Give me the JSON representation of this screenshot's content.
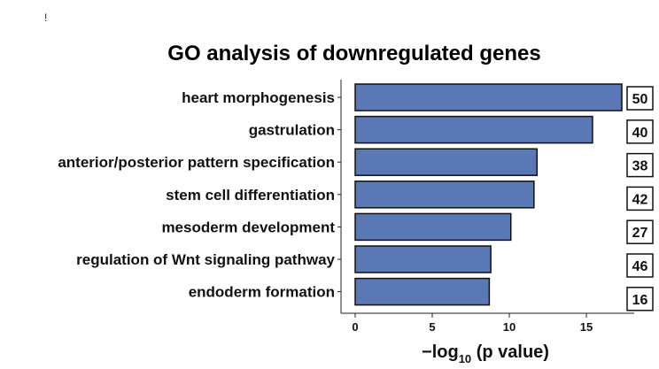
{
  "chart_data": {
    "type": "bar",
    "orientation": "horizontal",
    "title": "GO analysis of downregulated genes",
    "categories": [
      "heart morphogenesis",
      "gastrulation",
      "anterior/posterior pattern specification",
      "stem cell differentiation",
      "mesoderm development",
      "regulation of Wnt signaling pathway",
      "endoderm formation"
    ],
    "values": [
      17.3,
      15.4,
      11.8,
      11.6,
      10.1,
      8.8,
      8.7
    ],
    "gene_counts": [
      "50",
      "40",
      "38",
      "42",
      "27",
      "46",
      "16"
    ],
    "xlabel_main": "−log",
    "xlabel_sub": "10",
    "xlabel_rest": " (p value)",
    "ylabel": "",
    "xlim": [
      0,
      17.5
    ],
    "xticks": [
      0,
      5,
      10,
      15
    ],
    "grid": false,
    "bar_color": "#5a78b5"
  }
}
